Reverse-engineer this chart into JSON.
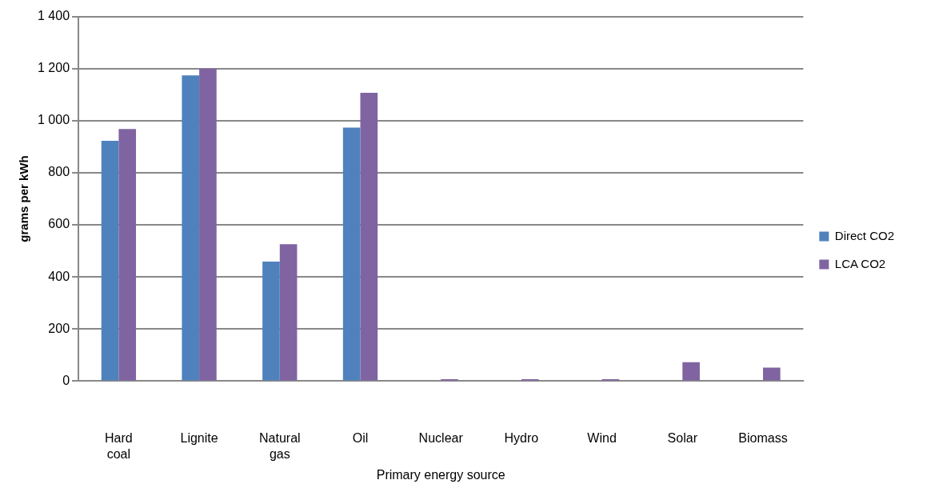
{
  "chart_data": {
    "type": "bar",
    "xlabel": "Primary energy source",
    "ylabel": "grams per kWh",
    "categories": [
      "Hard coal",
      "Lignite",
      "Natural gas",
      "Oil",
      "Nuclear",
      "Hydro",
      "Wind",
      "Solar",
      "Biomass"
    ],
    "series": [
      {
        "name": "Direct CO2",
        "color": "#4f81bd",
        "values": [
          923,
          1174,
          459,
          973,
          0,
          0,
          0,
          0,
          0
        ]
      },
      {
        "name": "LCA CO2",
        "color": "#8064a2",
        "values": [
          968,
          1200,
          526,
          1107,
          7,
          7,
          7,
          73,
          52
        ]
      }
    ],
    "ylim": [
      0,
      1400
    ],
    "yticks": [
      0,
      200,
      400,
      600,
      800,
      {
        "value": 1000,
        "label": "1 000"
      },
      {
        "value": 1200,
        "label": "1 200"
      },
      {
        "value": 1400,
        "label": "1 400"
      }
    ],
    "grid": "y",
    "legend": "right"
  }
}
